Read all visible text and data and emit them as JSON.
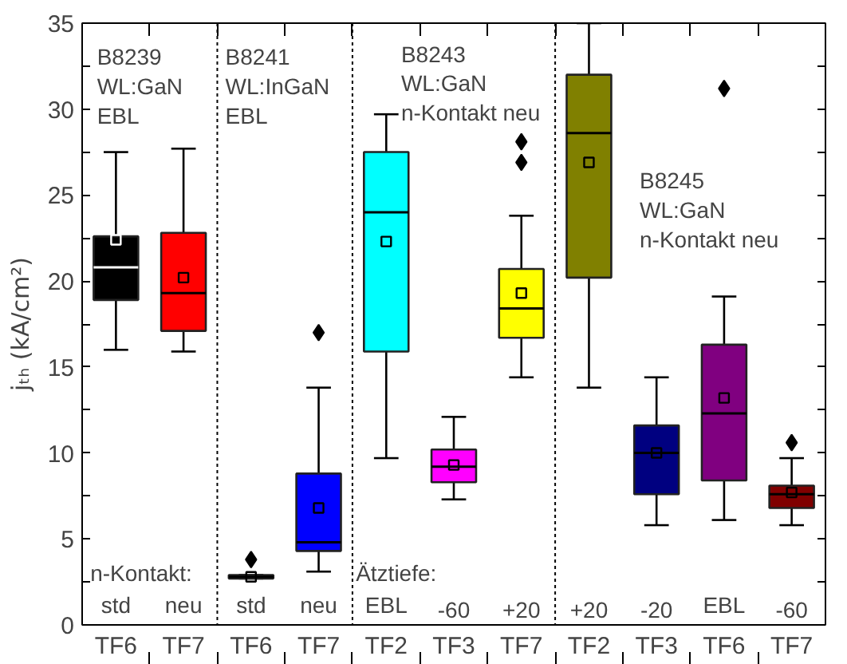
{
  "chart_data": {
    "type": "box",
    "ylabel": "jₜₕ (kA/cm²)",
    "categories": [
      "TF6",
      "TF7",
      "TF6",
      "TF7",
      "TF2",
      "TF3",
      "TF7",
      "TF2",
      "TF3",
      "TF6",
      "TF7"
    ],
    "ylim": [
      0,
      35
    ],
    "yticks": [
      0,
      {
        "value": 2.5,
        "label": null
      },
      5,
      {
        "value": 7.5,
        "label": null
      },
      10,
      {
        "value": 12.5,
        "label": null
      },
      15,
      {
        "value": 17.5,
        "label": null
      },
      20,
      {
        "value": 22.5,
        "label": null
      },
      25,
      {
        "value": 27.5,
        "label": null
      },
      30,
      {
        "value": 32.5,
        "label": null
      },
      35
    ],
    "colors": [
      "#000000",
      "#ff0000",
      "#000000",
      "#0000ff",
      "#00ffff",
      "#ff00ff",
      "#ffff00",
      "#808000",
      "#000080",
      "#800080",
      "#800000"
    ],
    "boxes": [
      {
        "low": 16.0,
        "q1": 18.9,
        "median": 20.8,
        "q3": 22.6,
        "high": 27.5,
        "mean": 22.4
      },
      {
        "low": 15.9,
        "q1": 17.1,
        "median": 19.3,
        "q3": 22.8,
        "high": 27.7,
        "mean": 20.2
      },
      {
        "low": 2.7,
        "q1": 2.7,
        "median": 2.8,
        "q3": 2.9,
        "high": 2.9,
        "mean": 2.8,
        "outliers": [
          3.8
        ]
      },
      {
        "low": 3.1,
        "q1": 4.3,
        "median": 4.8,
        "q3": 8.8,
        "high": 13.8,
        "mean": 6.8,
        "outliers": [
          17.0
        ]
      },
      {
        "low": 9.7,
        "q1": 15.9,
        "median": 24.0,
        "q3": 27.5,
        "high": 29.7,
        "mean": 22.3
      },
      {
        "low": 7.3,
        "q1": 8.3,
        "median": 9.2,
        "q3": 10.2,
        "high": 12.1,
        "mean": 9.3
      },
      {
        "low": 14.4,
        "q1": 16.7,
        "median": 18.4,
        "q3": 20.7,
        "high": 23.8,
        "mean": 19.3,
        "outliers": [
          26.9,
          28.1
        ]
      },
      {
        "low": 13.8,
        "q1": 20.2,
        "median": 28.6,
        "q3": 32.0,
        "high": 35,
        "mean": 26.9
      },
      {
        "low": 5.8,
        "q1": 7.6,
        "median": 10.0,
        "q3": 11.6,
        "high": 14.4,
        "mean": 10.0
      },
      {
        "low": 6.1,
        "q1": 8.4,
        "median": 12.3,
        "q3": 16.3,
        "high": 19.1,
        "mean": 13.2,
        "outliers": [
          31.2
        ]
      },
      {
        "low": 5.8,
        "q1": 6.8,
        "median": 7.6,
        "q3": 8.1,
        "high": 9.7,
        "mean": 7.7,
        "outliers": [
          10.6
        ]
      }
    ],
    "annotations": [
      "B8239\nWL:GaN\nEBL",
      "B8241\nWL:InGaN\nEBL",
      "B8243\nWL:GaN\nn-Kontakt neu",
      "B8245\nWL:GaN\nn-Kontakt neu",
      "n-Kontakt:",
      "Ätztiefe:",
      "std",
      "neu",
      "std",
      "neu",
      "EBL",
      "-60",
      "+20",
      "+20",
      "-20",
      "EBL",
      "-60"
    ],
    "grid": false
  }
}
